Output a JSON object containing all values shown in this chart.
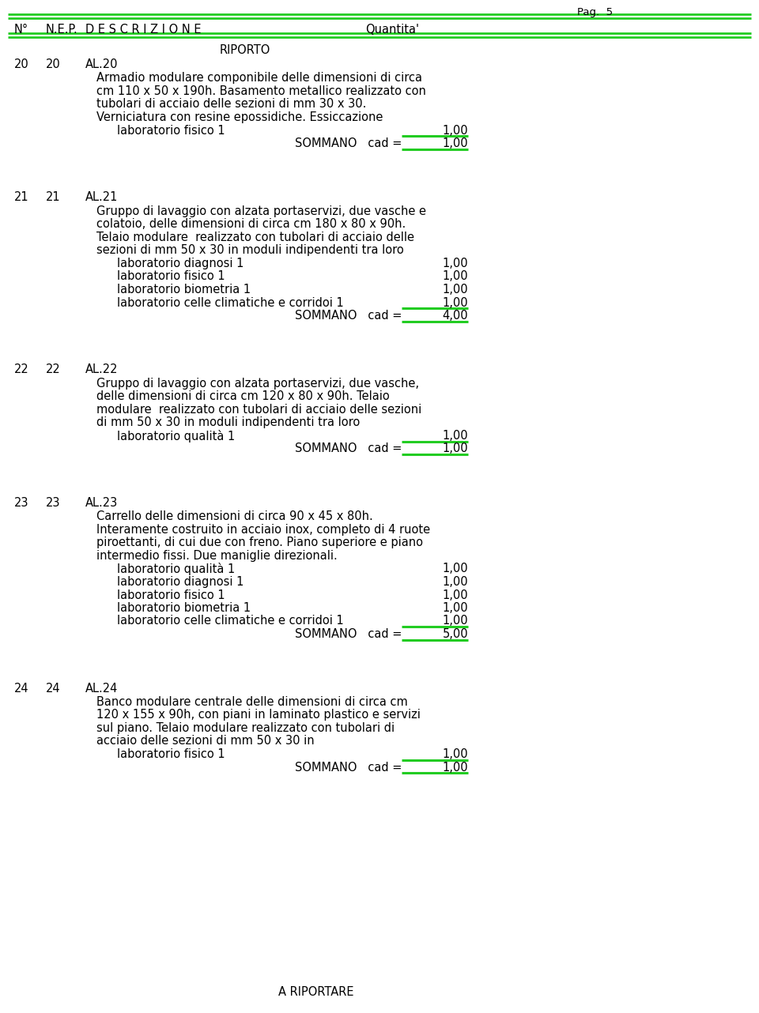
{
  "page_label": "Pag.  5",
  "header_cols": [
    "N°",
    "N.E.P.",
    "D E S C R I Z I O N E",
    "Quantita'"
  ],
  "riporto": "RIPORTO",
  "footer": "A RIPORTARE",
  "green_color": "#22cc22",
  "bg_color": "#ffffff",
  "text_color": "#000000",
  "sections": [
    {
      "num": "20",
      "nep": "20",
      "code": "AL.20",
      "description_lines": [
        "Armadio modulare componibile delle dimensioni di circa",
        "cm 110 x 50 x 190h. Basamento metallico realizzato con",
        "tubolari di acciaio delle sezioni di mm 30 x 30.",
        "Verniciatura con resine epossidiche. Essiccazione"
      ],
      "items": [
        {
          "label": "laboratorio fisico 1",
          "value": "1,00"
        }
      ],
      "sommano_value": "1,00"
    },
    {
      "num": "21",
      "nep": "21",
      "code": "AL.21",
      "description_lines": [
        "Gruppo di lavaggio con alzata portaservizi, due vasche e",
        "colatoio, delle dimensioni di circa cm 180 x 80 x 90h.",
        "Telaio modulare  realizzato con tubolari di acciaio delle",
        "sezioni di mm 50 x 30 in moduli indipendenti tra loro"
      ],
      "items": [
        {
          "label": "laboratorio diagnosi 1",
          "value": "1,00"
        },
        {
          "label": "laboratorio fisico 1",
          "value": "1,00"
        },
        {
          "label": "laboratorio biometria 1",
          "value": "1,00"
        },
        {
          "label": "laboratorio celle climatiche e corridoi 1",
          "value": "1,00"
        }
      ],
      "sommano_value": "4,00"
    },
    {
      "num": "22",
      "nep": "22",
      "code": "AL.22",
      "description_lines": [
        "Gruppo di lavaggio con alzata portaservizi, due vasche,",
        "delle dimensioni di circa cm 120 x 80 x 90h. Telaio",
        "modulare  realizzato con tubolari di acciaio delle sezioni",
        "di mm 50 x 30 in moduli indipendenti tra loro"
      ],
      "items": [
        {
          "label": "laboratorio qualità 1",
          "value": "1,00"
        }
      ],
      "sommano_value": "1,00"
    },
    {
      "num": "23",
      "nep": "23",
      "code": "AL.23",
      "description_lines": [
        "Carrello delle dimensioni di circa 90 x 45 x 80h.",
        "Interamente costruito in acciaio inox, completo di 4 ruote",
        "piroettanti, di cui due con freno. Piano superiore e piano",
        "intermedio fissi. Due maniglie direzionali."
      ],
      "items": [
        {
          "label": "laboratorio qualità 1",
          "value": "1,00"
        },
        {
          "label": "laboratorio diagnosi 1",
          "value": "1,00"
        },
        {
          "label": "laboratorio fisico 1",
          "value": "1,00"
        },
        {
          "label": "laboratorio biometria 1",
          "value": "1,00"
        },
        {
          "label": "laboratorio celle climatiche e corridoi 1",
          "value": "1,00"
        }
      ],
      "sommano_value": "5,00"
    },
    {
      "num": "24",
      "nep": "24",
      "code": "AL.24",
      "description_lines": [
        "Banco modulare centrale delle dimensioni di circa cm",
        "120 x 155 x 90h, con piani in laminato plastico e servizi",
        "sul piano. Telaio modulare realizzato con tubolari di",
        "acciaio delle sezioni di mm 50 x 30 in"
      ],
      "items": [
        {
          "label": "laboratorio fisico 1",
          "value": "1,00"
        }
      ],
      "sommano_value": "1,00"
    }
  ]
}
